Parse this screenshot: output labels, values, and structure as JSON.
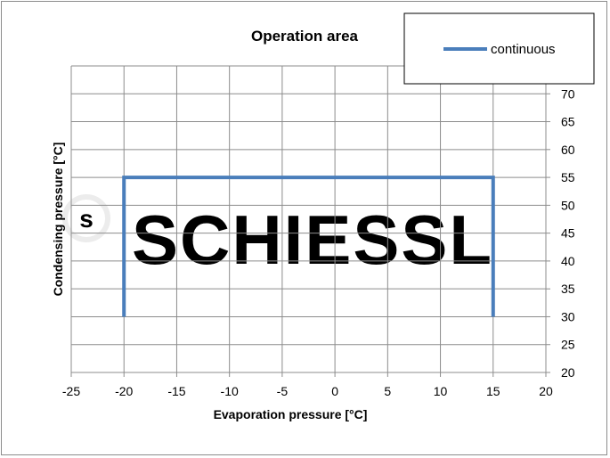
{
  "chart_data": {
    "type": "line",
    "title": "Operation area",
    "xlabel": "Evaporation pressure [°C]",
    "ylabel": "Condensing pressure [°C]",
    "xlim": [
      -25,
      20
    ],
    "ylim": [
      20,
      75
    ],
    "x_ticks": [
      -25,
      -20,
      -15,
      -10,
      -5,
      0,
      5,
      10,
      15,
      20
    ],
    "y_ticks": [
      20,
      25,
      30,
      35,
      40,
      45,
      50,
      55,
      60,
      65,
      70
    ],
    "grid": true,
    "y_axis_side": "right",
    "legend_position": "top-right",
    "series": [
      {
        "name": "continuous",
        "color": "#4a7ebb",
        "points": [
          {
            "x": -20,
            "y": 30
          },
          {
            "x": -20,
            "y": 55
          },
          {
            "x": 15,
            "y": 55
          },
          {
            "x": 15,
            "y": 30
          }
        ]
      }
    ]
  },
  "watermark": {
    "text": "SCHIESSL",
    "logo_letter": "s"
  }
}
